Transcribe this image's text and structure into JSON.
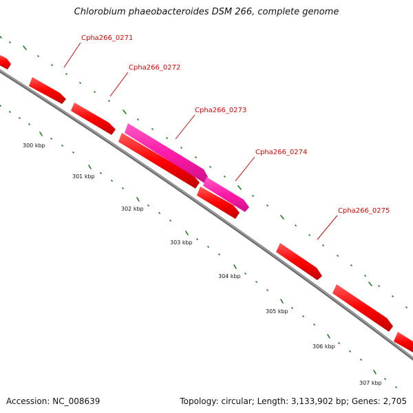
{
  "title": "Chlorobium phaeobacteroides DSM 266, complete genome",
  "footer": {
    "accession": "Accession: NC_008639",
    "stats": "Topology: circular; Length: 3,133,902 bp; Genes: 2,705"
  },
  "colors": {
    "backbone": "#8a8a8a",
    "gene": "#ff0000",
    "gene_highlight": "#ff1493",
    "ticks": "#1a7a1a",
    "label": "#dd0000"
  },
  "scale_labels": [
    "300 kbp",
    "301 kbp",
    "302 kbp",
    "303 kbp",
    "304 kbp",
    "305 kbp",
    "306 kbp",
    "307 kbp"
  ],
  "gene_labels": [
    "Cpha266_0271",
    "Cpha266_0272",
    "Cpha266_0273",
    "Cpha266_0274",
    "Cpha266_0275"
  ]
}
